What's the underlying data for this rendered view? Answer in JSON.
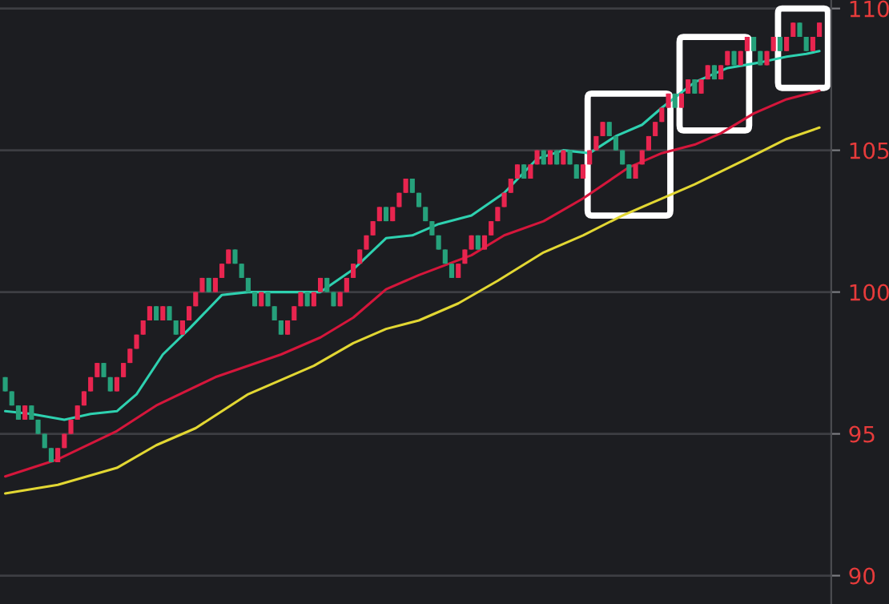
{
  "chart_data": {
    "type": "candlestick",
    "categories": [
      null,
      null,
      null,
      null,
      null,
      null,
      null,
      null,
      null,
      null,
      null,
      null,
      null,
      null,
      null,
      null,
      null,
      null,
      null,
      null,
      null,
      null,
      null,
      null,
      null,
      null,
      null,
      null,
      null,
      null,
      null,
      null,
      null,
      null,
      null,
      null,
      null,
      null,
      null,
      null,
      null,
      null,
      null,
      null,
      null,
      null,
      null,
      null,
      null,
      null,
      null,
      null,
      null,
      null,
      null,
      null,
      null,
      null,
      null,
      null,
      null,
      null,
      null,
      null,
      null,
      null,
      null,
      null,
      null,
      null,
      null,
      null,
      null,
      null,
      null,
      null,
      null,
      null,
      null,
      null,
      null,
      null,
      null,
      null,
      null,
      null,
      null,
      null,
      null,
      null,
      null,
      null,
      null,
      null,
      null,
      null,
      null,
      null,
      null,
      null,
      null,
      null,
      null,
      null,
      null,
      null,
      null,
      null,
      null,
      null,
      null,
      null,
      null,
      null,
      null,
      null,
      null,
      null,
      null,
      null,
      null,
      null,
      null,
      null,
      null
    ],
    "ohlc": [
      [
        97,
        97,
        96.5,
        96.5
      ],
      [
        96.5,
        96.5,
        96,
        96
      ],
      [
        96,
        96,
        95.5,
        95.5
      ],
      [
        95.5,
        96,
        95.5,
        96
      ],
      [
        96,
        96,
        95.5,
        95.5
      ],
      [
        95.5,
        95.5,
        95,
        95
      ],
      [
        95,
        95,
        94.5,
        94.5
      ],
      [
        94.5,
        94.5,
        94,
        94
      ],
      [
        94,
        94.5,
        94,
        94.5
      ],
      [
        94.5,
        95,
        94.5,
        95
      ],
      [
        95,
        95.5,
        95,
        95.5
      ],
      [
        95.5,
        96,
        95.5,
        96
      ],
      [
        96,
        96.5,
        96,
        96.5
      ],
      [
        96.5,
        97,
        96.5,
        97
      ],
      [
        97,
        97.5,
        97,
        97.5
      ],
      [
        97.5,
        97.5,
        97,
        97
      ],
      [
        97,
        97,
        96.5,
        96.5
      ],
      [
        96.5,
        97,
        96.5,
        97
      ],
      [
        97,
        97.5,
        97,
        97.5
      ],
      [
        97.5,
        98,
        97.5,
        98
      ],
      [
        98,
        98.5,
        98,
        98.5
      ],
      [
        98.5,
        99,
        98.5,
        99
      ],
      [
        99,
        99.5,
        99,
        99.5
      ],
      [
        99.5,
        99.5,
        99,
        99
      ],
      [
        99,
        99.5,
        99,
        99.5
      ],
      [
        99.5,
        99.5,
        99,
        99
      ],
      [
        99,
        99,
        98.5,
        98.5
      ],
      [
        98.5,
        99,
        98.5,
        99
      ],
      [
        99,
        99.5,
        99,
        99.5
      ],
      [
        99.5,
        100,
        99.5,
        100
      ],
      [
        100,
        100.5,
        100,
        100.5
      ],
      [
        100.5,
        100.5,
        100,
        100
      ],
      [
        100,
        100.5,
        100,
        100.5
      ],
      [
        100.5,
        101,
        100.5,
        101
      ],
      [
        101,
        101.5,
        101,
        101.5
      ],
      [
        101.5,
        101.5,
        101,
        101
      ],
      [
        101,
        101,
        100.5,
        100.5
      ],
      [
        100.5,
        100.5,
        100,
        100
      ],
      [
        100,
        100,
        99.5,
        99.5
      ],
      [
        99.5,
        100,
        99.5,
        100
      ],
      [
        100,
        100,
        99.5,
        99.5
      ],
      [
        99.5,
        99.5,
        99,
        99
      ],
      [
        99,
        99,
        98.5,
        98.5
      ],
      [
        98.5,
        99,
        98.5,
        99
      ],
      [
        99,
        99.5,
        99,
        99.5
      ],
      [
        99.5,
        100,
        99.5,
        100
      ],
      [
        100,
        100,
        99.5,
        99.5
      ],
      [
        99.5,
        100,
        99.5,
        100
      ],
      [
        100,
        100.5,
        100,
        100.5
      ],
      [
        100.5,
        100.5,
        100,
        100
      ],
      [
        100,
        100,
        99.5,
        99.5
      ],
      [
        99.5,
        100,
        99.5,
        100
      ],
      [
        100,
        100.5,
        100,
        100.5
      ],
      [
        100.5,
        101,
        100.5,
        101
      ],
      [
        101,
        101.5,
        101,
        101.5
      ],
      [
        101.5,
        102,
        101.5,
        102
      ],
      [
        102,
        102.5,
        102,
        102.5
      ],
      [
        102.5,
        103,
        102.5,
        103
      ],
      [
        103,
        103,
        102.5,
        102.5
      ],
      [
        102.5,
        103,
        102.5,
        103
      ],
      [
        103,
        103.5,
        103,
        103.5
      ],
      [
        103.5,
        104,
        103.5,
        104
      ],
      [
        104,
        104,
        103.5,
        103.5
      ],
      [
        103.5,
        103.5,
        103,
        103
      ],
      [
        103,
        103,
        102.5,
        102.5
      ],
      [
        102.5,
        102.5,
        102,
        102
      ],
      [
        102,
        102,
        101.5,
        101.5
      ],
      [
        101.5,
        101.5,
        101,
        101
      ],
      [
        101,
        101,
        100.5,
        100.5
      ],
      [
        100.5,
        101,
        100.5,
        101
      ],
      [
        101,
        101.5,
        101,
        101.5
      ],
      [
        101.5,
        102,
        101.5,
        102
      ],
      [
        102,
        102,
        101.5,
        101.5
      ],
      [
        101.5,
        102,
        101.5,
        102
      ],
      [
        102,
        102.5,
        102,
        102.5
      ],
      [
        102.5,
        103,
        102.5,
        103
      ],
      [
        103,
        103.5,
        103,
        103.5
      ],
      [
        103.5,
        104,
        103.5,
        104
      ],
      [
        104,
        104.5,
        104,
        104.5
      ],
      [
        104.5,
        104.5,
        104,
        104
      ],
      [
        104,
        104.5,
        104,
        104.5
      ],
      [
        104.5,
        105,
        104.5,
        105
      ],
      [
        105,
        105,
        104.5,
        104.5
      ],
      [
        104.5,
        105,
        104.5,
        105
      ],
      [
        105,
        105,
        104.5,
        104.5
      ],
      [
        104.5,
        105,
        104.5,
        105
      ],
      [
        105,
        105,
        104.5,
        104.5
      ],
      [
        104.5,
        104.5,
        104,
        104
      ],
      [
        104,
        104.5,
        104,
        104.5
      ],
      [
        104.5,
        105,
        104.5,
        105
      ],
      [
        105,
        105.5,
        105,
        105.5
      ],
      [
        105.5,
        106,
        105.5,
        106
      ],
      [
        106,
        106,
        105.5,
        105.5
      ],
      [
        105.5,
        105.5,
        105,
        105
      ],
      [
        105,
        105,
        104.5,
        104.5
      ],
      [
        104.5,
        104.5,
        104,
        104
      ],
      [
        104,
        104.5,
        104,
        104.5
      ],
      [
        104.5,
        105,
        104.5,
        105
      ],
      [
        105,
        105.5,
        105,
        105.5
      ],
      [
        105.5,
        106,
        105.5,
        106
      ],
      [
        106,
        106.5,
        106,
        106.5
      ],
      [
        106.5,
        107,
        106.5,
        107
      ],
      [
        107,
        107,
        106.5,
        106.5
      ],
      [
        106.5,
        107,
        106.5,
        107
      ],
      [
        107,
        107.5,
        107,
        107.5
      ],
      [
        107.5,
        107.5,
        107,
        107
      ],
      [
        107,
        107.5,
        107,
        107.5
      ],
      [
        107.5,
        108,
        107.5,
        108
      ],
      [
        108,
        108,
        107.5,
        107.5
      ],
      [
        107.5,
        108,
        107.5,
        108
      ],
      [
        108,
        108.5,
        108,
        108.5
      ],
      [
        108.5,
        108.5,
        108,
        108
      ],
      [
        108,
        108.5,
        108,
        108.5
      ],
      [
        108.5,
        109,
        108.5,
        109
      ],
      [
        109,
        109,
        108.5,
        108.5
      ],
      [
        108.5,
        108.5,
        108,
        108
      ],
      [
        108,
        108.5,
        108,
        108.5
      ],
      [
        108.5,
        109,
        108.5,
        109
      ],
      [
        109,
        109,
        108.5,
        108.5
      ],
      [
        108.5,
        109,
        108.5,
        109
      ],
      [
        109,
        109.5,
        109,
        109.5
      ],
      [
        109.5,
        109.5,
        109,
        109
      ],
      [
        109,
        109,
        108.5,
        108.5
      ],
      [
        108.5,
        109,
        108.5,
        109
      ],
      [
        109,
        109.5,
        109,
        109.5
      ]
    ],
    "colors": [
      "#26a17b",
      "#26a17b",
      "#26a17b",
      "#e8254f",
      "#26a17b",
      "#26a17b",
      "#26a17b",
      "#26a17b",
      "#e8254f",
      "#e8254f",
      "#e8254f",
      "#e8254f",
      "#e8254f",
      "#e8254f",
      "#e8254f",
      "#26a17b",
      "#26a17b",
      "#e8254f",
      "#e8254f",
      "#e8254f",
      "#e8254f",
      "#e8254f",
      "#e8254f",
      "#26a17b",
      "#e8254f",
      "#26a17b",
      "#26a17b",
      "#e8254f",
      "#e8254f",
      "#e8254f",
      "#e8254f",
      "#26a17b",
      "#e8254f",
      "#e8254f",
      "#e8254f",
      "#26a17b",
      "#26a17b",
      "#26a17b",
      "#26a17b",
      "#e8254f",
      "#26a17b",
      "#26a17b",
      "#26a17b",
      "#e8254f",
      "#e8254f",
      "#e8254f",
      "#26a17b",
      "#e8254f",
      "#e8254f",
      "#26a17b",
      "#26a17b",
      "#e8254f",
      "#e8254f",
      "#e8254f",
      "#e8254f",
      "#e8254f",
      "#e8254f",
      "#e8254f",
      "#26a17b",
      "#e8254f",
      "#e8254f",
      "#e8254f",
      "#26a17b",
      "#26a17b",
      "#26a17b",
      "#26a17b",
      "#26a17b",
      "#26a17b",
      "#26a17b",
      "#e8254f",
      "#e8254f",
      "#e8254f",
      "#26a17b",
      "#e8254f",
      "#e8254f",
      "#e8254f",
      "#e8254f",
      "#e8254f",
      "#e8254f",
      "#26a17b",
      "#e8254f",
      "#e8254f",
      "#26a17b",
      "#e8254f",
      "#26a17b",
      "#e8254f",
      "#26a17b",
      "#26a17b",
      "#e8254f",
      "#e8254f",
      "#e8254f",
      "#e8254f",
      "#26a17b",
      "#26a17b",
      "#26a17b",
      "#26a17b",
      "#e8254f",
      "#e8254f",
      "#e8254f",
      "#e8254f",
      "#e8254f",
      "#e8254f",
      "#26a17b",
      "#e8254f",
      "#e8254f",
      "#26a17b",
      "#e8254f",
      "#e8254f",
      "#26a17b",
      "#e8254f",
      "#e8254f",
      "#26a17b",
      "#e8254f",
      "#e8254f",
      "#26a17b",
      "#26a17b",
      "#e8254f",
      "#e8254f",
      "#26a17b",
      "#e8254f",
      "#e8254f",
      "#26a17b",
      "#26a17b",
      "#e8254f",
      "#e8254f"
    ],
    "series": [
      {
        "type": "line",
        "color": "#2ed1b0",
        "values": [
          95.8,
          null,
          null,
          null,
          95.7,
          null,
          null,
          null,
          null,
          95.5,
          null,
          null,
          null,
          95.7,
          null,
          null,
          null,
          95.8,
          null,
          null,
          96.4,
          null,
          null,
          null,
          97.8,
          null,
          null,
          null,
          98.7,
          null,
          null,
          null,
          null,
          99.9,
          null,
          null,
          null,
          100.0,
          null,
          null,
          null,
          null,
          100.0,
          null,
          null,
          null,
          null,
          null,
          100.0,
          null,
          null,
          null,
          null,
          100.8,
          null,
          null,
          null,
          null,
          101.9,
          null,
          null,
          null,
          102.0,
          null,
          null,
          null,
          102.4,
          null,
          null,
          null,
          null,
          102.7,
          null,
          null,
          null,
          null,
          103.5,
          null,
          null,
          null,
          null,
          104.7,
          null,
          null,
          null,
          105.0,
          null,
          null,
          null,
          104.9,
          null,
          null,
          null,
          105.5,
          null,
          null,
          null,
          105.9,
          null,
          null,
          106.5,
          null,
          null,
          null,
          null,
          107.4,
          null,
          null,
          null,
          null,
          107.9,
          null,
          null,
          null,
          null,
          108.1,
          null,
          null,
          null,
          108.3,
          null,
          null,
          108.4,
          null,
          108.5
        ]
      },
      {
        "type": "line",
        "color": "#d5163b",
        "values": [
          93.5,
          null,
          null,
          null,
          null,
          null,
          null,
          null,
          94.1,
          null,
          null,
          null,
          null,
          null,
          null,
          null,
          null,
          95.1,
          null,
          null,
          null,
          null,
          null,
          96.0,
          null,
          null,
          null,
          null,
          null,
          null,
          null,
          null,
          97.0,
          null,
          null,
          null,
          null,
          null,
          null,
          null,
          null,
          null,
          97.8,
          null,
          null,
          null,
          null,
          null,
          98.4,
          null,
          null,
          null,
          null,
          99.1,
          null,
          null,
          null,
          null,
          100.1,
          null,
          null,
          null,
          null,
          100.6,
          null,
          null,
          null,
          null,
          null,
          null,
          null,
          101.3,
          null,
          null,
          null,
          null,
          102.0,
          null,
          null,
          null,
          null,
          null,
          102.5,
          null,
          null,
          null,
          null,
          null,
          103.3,
          null,
          null,
          null,
          null,
          null,
          null,
          104.4,
          null,
          null,
          null,
          null,
          104.9,
          null,
          null,
          null,
          null,
          105.2,
          null,
          null,
          null,
          105.6,
          null,
          null,
          null,
          null,
          106.3,
          null,
          null,
          null,
          null,
          106.8,
          null,
          null,
          null,
          null,
          107.1
        ]
      },
      {
        "type": "line",
        "color": "#e2d733",
        "values": [
          92.9,
          null,
          null,
          null,
          null,
          null,
          null,
          null,
          93.2,
          null,
          null,
          null,
          null,
          null,
          null,
          null,
          null,
          93.8,
          null,
          null,
          null,
          null,
          null,
          94.6,
          null,
          null,
          null,
          null,
          null,
          95.2,
          null,
          null,
          null,
          null,
          null,
          null,
          null,
          96.4,
          null,
          null,
          null,
          null,
          null,
          null,
          null,
          null,
          null,
          97.4,
          null,
          null,
          null,
          null,
          null,
          98.2,
          null,
          null,
          null,
          null,
          98.7,
          null,
          null,
          null,
          null,
          99.0,
          null,
          null,
          null,
          null,
          null,
          99.6,
          null,
          null,
          null,
          null,
          null,
          100.4,
          null,
          null,
          null,
          null,
          null,
          null,
          101.4,
          null,
          null,
          null,
          null,
          null,
          102.0,
          null,
          null,
          null,
          null,
          null,
          102.7,
          null,
          null,
          null,
          null,
          null,
          103.3,
          null,
          null,
          null,
          null,
          103.8,
          null,
          null,
          null,
          null,
          null,
          null,
          null,
          104.7,
          null,
          null,
          null,
          null,
          null,
          105.4,
          null,
          null,
          null,
          null,
          105.8
        ]
      }
    ],
    "ylim": [
      89,
      110.3
    ],
    "yticks": [
      90,
      95,
      100,
      105,
      110
    ],
    "grid": "y",
    "tick_labels": "y"
  }
}
